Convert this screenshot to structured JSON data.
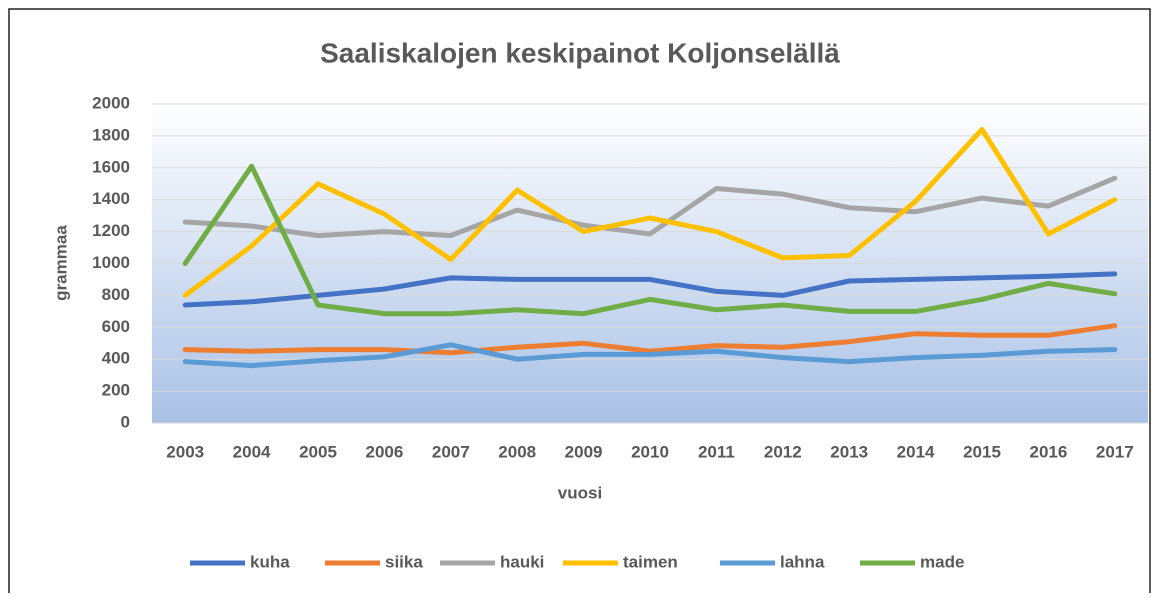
{
  "chart_data": {
    "type": "line",
    "title": "Saaliskalojen keskipainot Koljonselällä",
    "xlabel": "vuosi",
    "ylabel": "grammaa",
    "categories": [
      "2003",
      "2004",
      "2005",
      "2006",
      "2007",
      "2008",
      "2009",
      "2010",
      "2011",
      "2012",
      "2013",
      "2014",
      "2015",
      "2016",
      "2017"
    ],
    "series": [
      {
        "name": "kuha",
        "color": "#4472c4",
        "values": [
          740,
          760,
          800,
          840,
          910,
          900,
          900,
          900,
          825,
          800,
          890,
          900,
          910,
          920,
          935
        ]
      },
      {
        "name": "siika",
        "color": "#ed7d31",
        "values": [
          460,
          450,
          460,
          460,
          440,
          475,
          500,
          450,
          485,
          475,
          510,
          560,
          550,
          550,
          610
        ]
      },
      {
        "name": "hauki",
        "color": "#a5a5a5",
        "values": [
          1260,
          1235,
          1175,
          1200,
          1175,
          1335,
          1240,
          1185,
          1470,
          1435,
          1350,
          1325,
          1410,
          1360,
          1535
        ]
      },
      {
        "name": "taimen",
        "color": "#ffc000",
        "values": [
          800,
          1110,
          1500,
          1310,
          1025,
          1460,
          1200,
          1285,
          1200,
          1035,
          1050,
          1390,
          1840,
          1185,
          1400
        ]
      },
      {
        "name": "lahna",
        "color": "#5b9bd5",
        "values": [
          385,
          360,
          390,
          415,
          490,
          400,
          430,
          430,
          450,
          410,
          385,
          410,
          425,
          450,
          460
        ]
      },
      {
        "name": "made",
        "color": "#70ad47",
        "values": [
          1000,
          1610,
          740,
          685,
          685,
          710,
          685,
          775,
          710,
          740,
          700,
          700,
          775,
          875,
          810
        ]
      }
    ],
    "ylim": [
      0,
      2000
    ],
    "yticks": [
      0,
      200,
      400,
      600,
      800,
      1000,
      1200,
      1400,
      1600,
      1800,
      2000
    ],
    "grid": true,
    "legend": "bottom"
  }
}
